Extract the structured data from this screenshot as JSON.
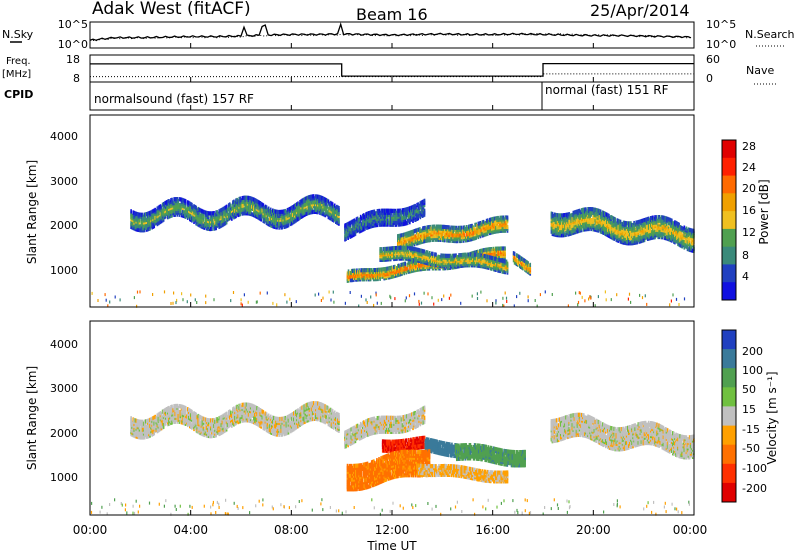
{
  "header": {
    "station": "Adak West (fitACF)",
    "beam": "Beam 16",
    "date": "25/Apr/2014"
  },
  "noise_panel": {
    "left_label": "N.Sky",
    "right_label": "N.Search",
    "left_ticks": [
      "10^5",
      "10^0"
    ],
    "right_ticks": [
      "10^5",
      "10^0"
    ]
  },
  "freq_panel": {
    "left_label_1": "Freq.",
    "left_label_2": "[MHz]",
    "right_label": "Nave",
    "left_ticks": [
      "18",
      "8"
    ],
    "right_ticks": [
      "60",
      "0"
    ]
  },
  "cpid_panel": {
    "label": "CPID",
    "modes": [
      {
        "name": "normalsound (fast) 157 RF",
        "start_hour": 0,
        "end_hour": 18
      },
      {
        "name": "normal (fast) 151 RF",
        "start_hour": 18,
        "end_hour": 24
      }
    ]
  },
  "x_axis": {
    "label": "Time UT",
    "ticks": [
      "00:00",
      "04:00",
      "08:00",
      "12:00",
      "16:00",
      "20:00",
      "00:00"
    ]
  },
  "power_panel": {
    "ylabel": "Slant Range [km]",
    "yticks": [
      "4000",
      "3000",
      "2000",
      "1000"
    ],
    "colorbar_label": "Power [dB]",
    "colorbar_ticks": [
      "28",
      "24",
      "20",
      "16",
      "12",
      "8",
      "4"
    ]
  },
  "velocity_panel": {
    "ylabel": "Slant Range [km]",
    "yticks": [
      "4000",
      "3000",
      "2000",
      "1000"
    ],
    "colorbar_label": "Velocity [m s⁻¹]",
    "colorbar_ticks": [
      "200",
      "100",
      "50",
      "15",
      "-15",
      "-50",
      "-100",
      "-200"
    ]
  },
  "colors": {
    "power_scale": [
      "#1010e0",
      "#2040c0",
      "#3a8a7a",
      "#50a050",
      "#f0c020",
      "#f0a000",
      "#ff6a00",
      "#ff2000",
      "#e00000"
    ],
    "velocity_scale": [
      "#2040c0",
      "#3a7a9a",
      "#50a050",
      "#70c040",
      "#c0c0c0",
      "#ffa000",
      "#ff7000",
      "#ff3000",
      "#e00000"
    ]
  },
  "chart_data": [
    {
      "type": "line",
      "title": "N.Sky / N.Search",
      "x_hours": [
        0,
        1,
        2,
        3,
        4,
        5,
        6,
        7,
        8,
        9,
        10,
        11,
        12,
        13,
        14,
        15,
        16,
        17,
        18,
        19,
        20,
        21,
        22,
        23,
        24
      ],
      "series": [
        {
          "name": "N.Sky",
          "values": [
            1.5,
            2.0,
            2.0,
            2.1,
            2.2,
            2.2,
            2.3,
            2.5,
            2.6,
            2.6,
            2.7,
            2.6,
            2.5,
            2.6,
            2.7,
            2.6,
            2.6,
            2.7,
            2.6,
            2.5,
            2.4,
            2.4,
            2.3,
            2.2,
            2.1
          ]
        },
        {
          "name": "N.Search",
          "values": [
            1.4,
            1.9,
            1.9,
            2.0,
            2.1,
            2.1,
            2.2,
            2.4,
            2.5,
            2.5,
            2.6,
            2.5,
            2.4,
            2.5,
            2.6,
            2.5,
            2.5,
            2.6,
            2.7,
            2.6,
            2.5,
            2.4,
            2.3,
            2.2,
            2.0
          ]
        }
      ],
      "ylim": [
        0,
        5
      ]
    },
    {
      "type": "line",
      "title": "Freq. / Nave",
      "series": [
        {
          "name": "Freq.",
          "points": [
            [
              0,
              14.7
            ],
            [
              10,
              14.7
            ],
            [
              10,
              10.2
            ],
            [
              18,
              10.2
            ],
            [
              18,
              14.8
            ],
            [
              24,
              14.8
            ]
          ]
        },
        {
          "name": "Nave",
          "points": [
            [
              0,
              12
            ],
            [
              18,
              12
            ],
            [
              18,
              18
            ],
            [
              24,
              18
            ]
          ]
        }
      ],
      "ylim_freq": [
        8,
        18
      ],
      "ylim_nave": [
        0,
        60
      ]
    },
    {
      "type": "scatter",
      "title": "Power [dB]",
      "xlabel": "Time UT",
      "ylabel": "Slant Range [km]",
      "xlim": [
        0,
        24
      ],
      "ylim": [
        0,
        4600
      ],
      "bands": [
        {
          "t0": 1.6,
          "t1": 9.9,
          "r_start": 2200,
          "r_end": 2300,
          "width": 420,
          "amp": 180,
          "power": 14
        },
        {
          "t0": 10.1,
          "t1": 13.3,
          "r_start": 1850,
          "r_end": 2380,
          "width": 380,
          "amp": 80,
          "power": 10
        },
        {
          "t0": 12.2,
          "t1": 16.6,
          "r_start": 1600,
          "r_end": 1950,
          "width": 360,
          "amp": 60,
          "power": 22
        },
        {
          "t0": 10.2,
          "t1": 16.5,
          "r_start": 700,
          "r_end": 1300,
          "width": 260,
          "amp": 40,
          "power": 24
        },
        {
          "t0": 11.5,
          "t1": 16.6,
          "r_start": 1300,
          "r_end": 1000,
          "width": 300,
          "amp": 50,
          "power": 18
        },
        {
          "t0": 16.8,
          "t1": 17.5,
          "r_start": 1200,
          "r_end": 850,
          "width": 250,
          "amp": 40,
          "power": 22
        },
        {
          "t0": 18.3,
          "t1": 24,
          "r_start": 2100,
          "r_end": 1700,
          "width": 520,
          "amp": 120,
          "power": 18
        }
      ]
    },
    {
      "type": "scatter",
      "title": "Velocity [m s⁻¹]",
      "xlabel": "Time UT",
      "ylabel": "Slant Range [km]",
      "xlim": [
        0,
        24
      ],
      "ylim": [
        0,
        4600
      ],
      "bands": [
        {
          "t0": 1.6,
          "t1": 9.9,
          "r_start": 2200,
          "r_end": 2300,
          "width": 420,
          "amp": 180,
          "velocity": 0
        },
        {
          "t0": 10.1,
          "t1": 13.3,
          "r_start": 1850,
          "r_end": 2380,
          "width": 380,
          "amp": 80,
          "velocity": 0
        },
        {
          "t0": 11.6,
          "t1": 13.3,
          "r_start": 1650,
          "r_end": 1700,
          "width": 260,
          "amp": 30,
          "velocity": -150
        },
        {
          "t0": 13.3,
          "t1": 14.6,
          "r_start": 1650,
          "r_end": 1550,
          "width": 300,
          "amp": 30,
          "velocity": 120
        },
        {
          "t0": 14.5,
          "t1": 17.3,
          "r_start": 1500,
          "r_end": 1350,
          "width": 360,
          "amp": 40,
          "velocity": 60
        },
        {
          "t0": 10.2,
          "t1": 13.5,
          "r_start": 900,
          "r_end": 1300,
          "width": 600,
          "amp": 60,
          "velocity": -60
        },
        {
          "t0": 13.0,
          "t1": 16.6,
          "r_start": 1100,
          "r_end": 900,
          "width": 250,
          "amp": 30,
          "velocity": -20
        },
        {
          "t0": 18.3,
          "t1": 24,
          "r_start": 2100,
          "r_end": 1700,
          "width": 520,
          "amp": 120,
          "velocity": 0
        }
      ]
    }
  ]
}
